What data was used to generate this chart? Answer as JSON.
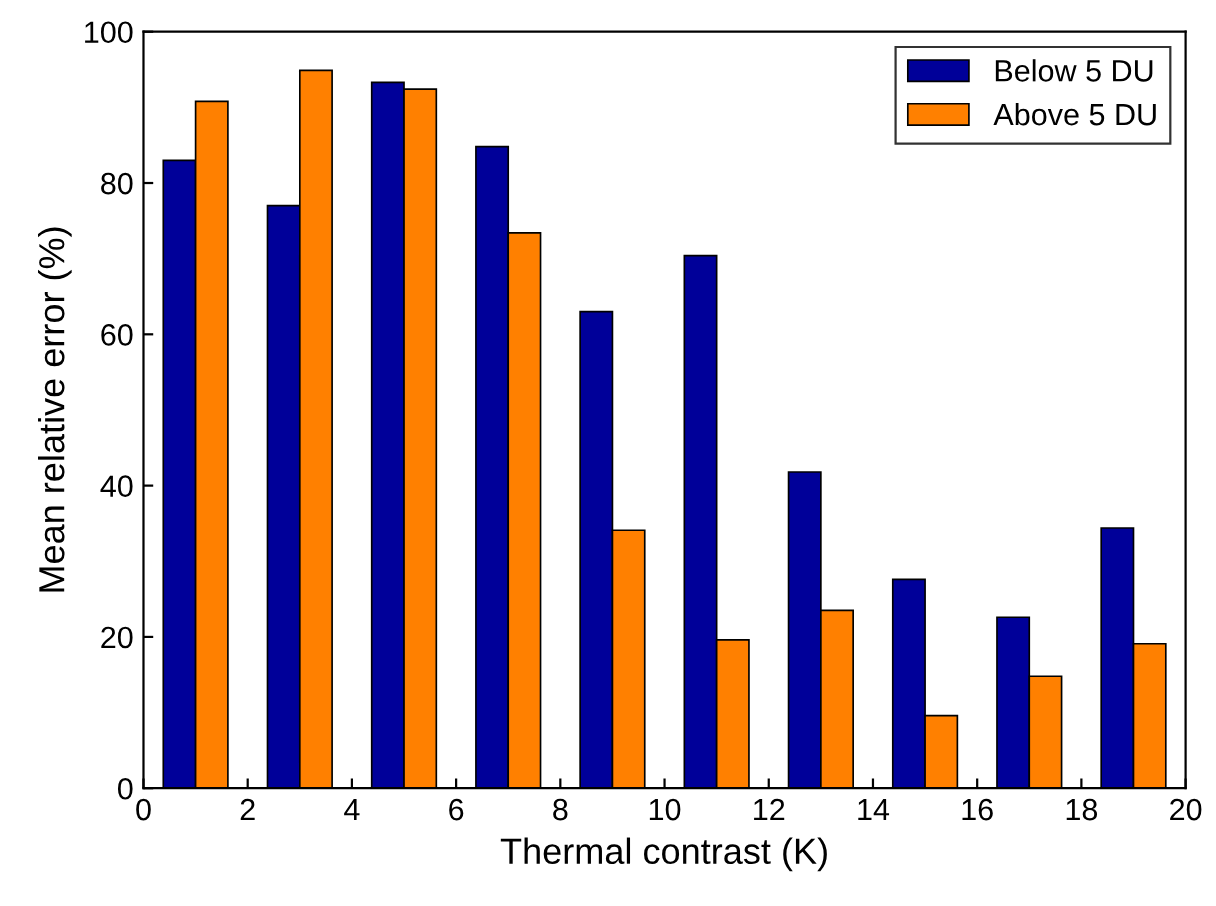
{
  "chart_data": {
    "type": "bar",
    "xlabel": "Thermal contrast (K)",
    "ylabel": "Mean relative error (%)",
    "x": [
      1,
      3,
      5,
      7,
      9,
      11,
      13,
      15,
      17,
      19
    ],
    "series": [
      {
        "name": "Below 5 DU",
        "color": "#000099",
        "values": [
          83,
          77,
          93.3,
          84.8,
          63,
          70.4,
          41.8,
          27.6,
          22.6,
          34.4
        ]
      },
      {
        "name": "Above 5 DU",
        "color": "#ff8000",
        "values": [
          90.8,
          94.9,
          92.4,
          73.4,
          34.1,
          19.6,
          23.5,
          9.6,
          14.8,
          19.1
        ]
      }
    ],
    "xlim": [
      0,
      20
    ],
    "xticks": [
      0,
      2,
      4,
      6,
      8,
      10,
      12,
      14,
      16,
      18,
      20
    ],
    "ylim": [
      0,
      100
    ],
    "yticks": [
      0,
      20,
      40,
      60,
      80,
      100
    ],
    "legend": "top right",
    "grid": false
  }
}
